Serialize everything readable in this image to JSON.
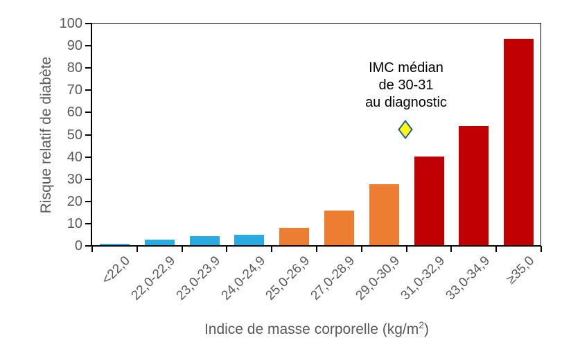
{
  "chart_data": {
    "type": "bar",
    "title": "",
    "categories": [
      "<22,0",
      "22,0-22,9",
      "23,0-23,9",
      "24,0-24,9",
      "25,0-26,9",
      "27,0-28,9",
      "29,0-30,9",
      "31,0-32,9",
      "33,0-34,9",
      "≥35,0"
    ],
    "values": [
      1.0,
      2.9,
      4.3,
      5.0,
      8.1,
      15.8,
      27.6,
      40.3,
      54.0,
      93.2
    ],
    "bar_colors": [
      "#29ABE2",
      "#29ABE2",
      "#29ABE2",
      "#29ABE2",
      "#ED7D31",
      "#ED7D31",
      "#ED7D31",
      "#C00000",
      "#C00000",
      "#C00000"
    ],
    "xlabel": "Indice de masse corporelle (kg/m²)",
    "ylabel": "Risque relatif de diabète",
    "ylim": [
      0,
      100
    ],
    "yticks": [
      0,
      10,
      20,
      30,
      40,
      50,
      60,
      70,
      80,
      90,
      100
    ],
    "grid": false,
    "legend_position": "none",
    "annotation": {
      "text_lines": [
        "IMC médian",
        "de 30-31",
        "au diagnostic"
      ],
      "marker": "diamond",
      "marker_fill": "#FFFF00",
      "marker_border": "#2A5CAA",
      "marker_y_value": 52.5,
      "marker_between_categories": [
        "29,0-30,9",
        "31,0-32,9"
      ]
    },
    "colors": {
      "axis": "#000000",
      "tick_text": "#595959",
      "axis_title_text": "#595959",
      "annotation_text": "#000000",
      "background": "#FFFFFF"
    }
  },
  "axes": {
    "y_title": "Risque relatif de diabète",
    "x_title_prefix": "Indice de masse corporelle (kg/m",
    "x_title_sup": "2",
    "x_title_suffix": ")"
  },
  "annotation": {
    "line1": "IMC médian",
    "line2": "de 30-31",
    "line3": "au diagnostic"
  }
}
